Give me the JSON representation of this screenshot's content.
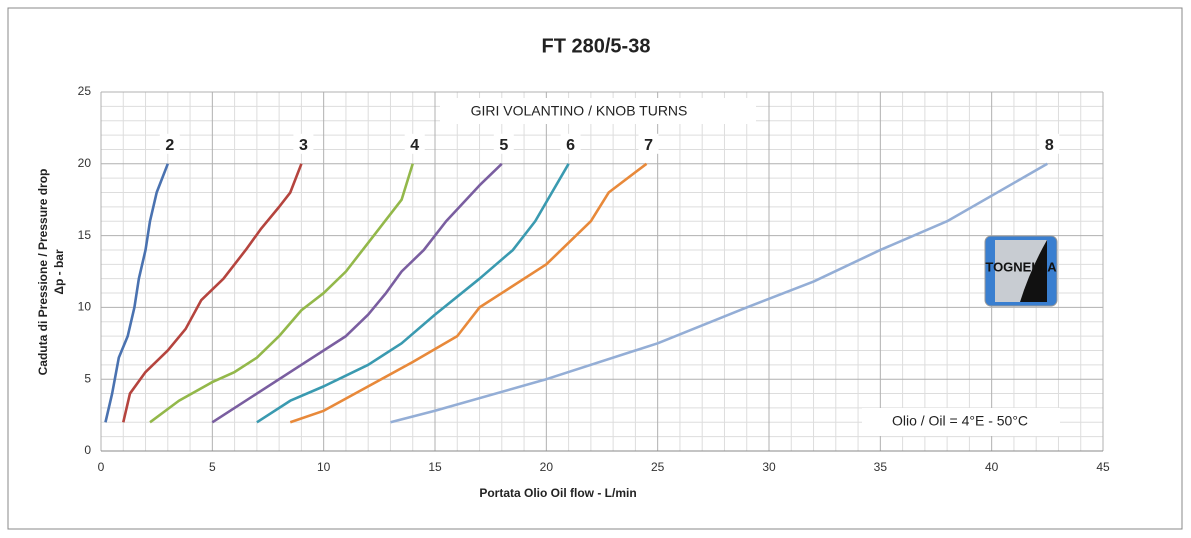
{
  "chart_data": {
    "type": "line",
    "title": "FT 280/5-38",
    "subtitle": "GIRI VOLANTINO / KNOB TURNS",
    "annotation": "Olio / Oil = 4°E  - 50°C",
    "logo": "TOGNELLA",
    "xlabel": "Portata Olio Oil flow -  L/min",
    "ylabel": [
      "Caduta di Pressione / Pressure drop",
      "Δp - bar"
    ],
    "xlim": [
      0,
      45
    ],
    "xticks": [
      0,
      5,
      10,
      15,
      20,
      25,
      30,
      35,
      40,
      45
    ],
    "ylim": [
      0,
      25
    ],
    "yticks": [
      0,
      5,
      10,
      15,
      20,
      25
    ],
    "grid": true,
    "series": [
      {
        "name": "2",
        "color": "#4a72b0",
        "x": [
          0.2,
          0.5,
          0.8,
          1.2,
          1.5,
          1.7,
          2.0,
          2.2,
          2.5,
          3.0
        ],
        "values": [
          2,
          4,
          6.5,
          8,
          10,
          12,
          14,
          16,
          18,
          20
        ]
      },
      {
        "name": "3",
        "color": "#b5443e",
        "x": [
          1.0,
          1.3,
          2.0,
          3.0,
          3.8,
          4.5,
          5.5,
          6.5,
          7.2,
          8.0,
          8.5,
          9.0
        ],
        "values": [
          2,
          4,
          5.5,
          7,
          8.5,
          10.5,
          12,
          14,
          15.5,
          17,
          18,
          20
        ]
      },
      {
        "name": "4",
        "color": "#93b84a",
        "x": [
          2.2,
          3.5,
          5,
          6,
          7,
          8,
          9,
          10,
          11,
          12,
          13,
          13.5,
          14
        ],
        "values": [
          2,
          3.5,
          4.8,
          5.5,
          6.5,
          8,
          9.8,
          11,
          12.5,
          14.5,
          16.5,
          17.5,
          20
        ]
      },
      {
        "name": "5",
        "color": "#7a5ea0",
        "x": [
          5,
          7,
          9,
          11,
          12,
          12.8,
          13.5,
          14.5,
          15.5,
          17,
          18
        ],
        "values": [
          2,
          4,
          6,
          8,
          9.5,
          11,
          12.5,
          14,
          16,
          18.5,
          20
        ]
      },
      {
        "name": "6",
        "color": "#3a9ab0",
        "x": [
          7,
          8.5,
          10,
          12,
          13.5,
          15,
          17,
          18.5,
          19.5,
          21
        ],
        "values": [
          2,
          3.5,
          4.5,
          6,
          7.5,
          9.5,
          12,
          14,
          16,
          20
        ]
      },
      {
        "name": "7",
        "color": "#e8893a",
        "x": [
          8.5,
          10,
          12,
          14,
          16,
          17,
          18,
          20,
          22,
          22.8,
          24.5
        ],
        "values": [
          2,
          2.8,
          4.5,
          6.2,
          8,
          10,
          11,
          13,
          16,
          18,
          20
        ]
      },
      {
        "name": "8",
        "color": "#94aed6",
        "x": [
          13,
          15,
          20,
          25,
          29,
          32,
          35,
          38,
          42.5
        ],
        "values": [
          2,
          2.8,
          5,
          7.5,
          10,
          11.8,
          14,
          16,
          20
        ]
      }
    ]
  }
}
